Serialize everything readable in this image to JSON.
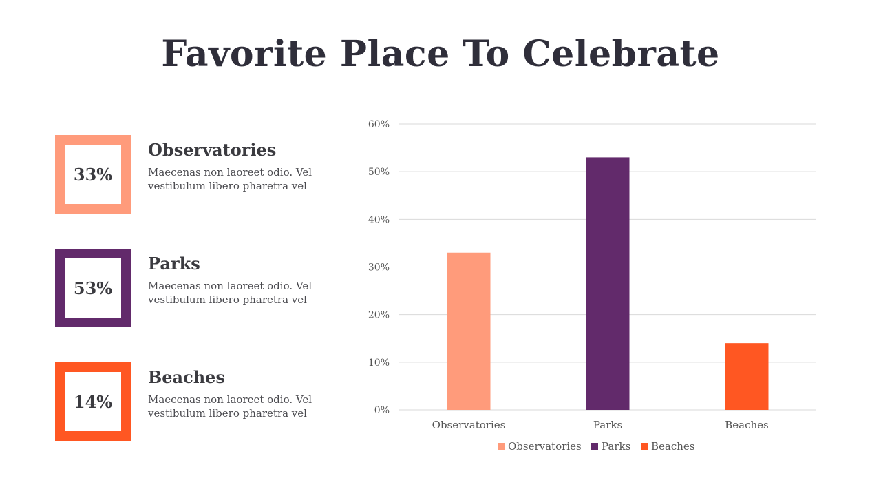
{
  "page": {
    "title": "Favorite Place To Celebrate"
  },
  "colors": {
    "observatories": "#FF9B7B",
    "parks": "#622A6B",
    "beaches": "#FF5722"
  },
  "items": [
    {
      "percent": "33%",
      "title": "Observatories",
      "desc": "Maecenas non laoreet odio. Vel vestibulum libero pharetra vel",
      "color": "#FF9B7B"
    },
    {
      "percent": "53%",
      "title": "Parks",
      "desc": "Maecenas non laoreet odio. Vel vestibulum libero pharetra vel",
      "color": "#622A6B"
    },
    {
      "percent": "14%",
      "title": "Beaches",
      "desc": "Maecenas non laoreet odio. Vel vestibulum libero pharetra vel",
      "color": "#FF5722"
    }
  ],
  "chart_data": {
    "type": "bar",
    "categories": [
      "Observatories",
      "Parks",
      "Beaches"
    ],
    "values": [
      33,
      53,
      14
    ],
    "colors": [
      "#FF9B7B",
      "#622A6B",
      "#FF5722"
    ],
    "yticks": [
      "0%",
      "10%",
      "20%",
      "30%",
      "40%",
      "50%",
      "60%"
    ],
    "ylim": [
      0,
      60
    ],
    "grid": true,
    "legend": {
      "placement": "bottom",
      "entries": [
        "Observatories",
        "Parks",
        "Beaches"
      ]
    },
    "title": "",
    "xlabel": "",
    "ylabel": ""
  }
}
